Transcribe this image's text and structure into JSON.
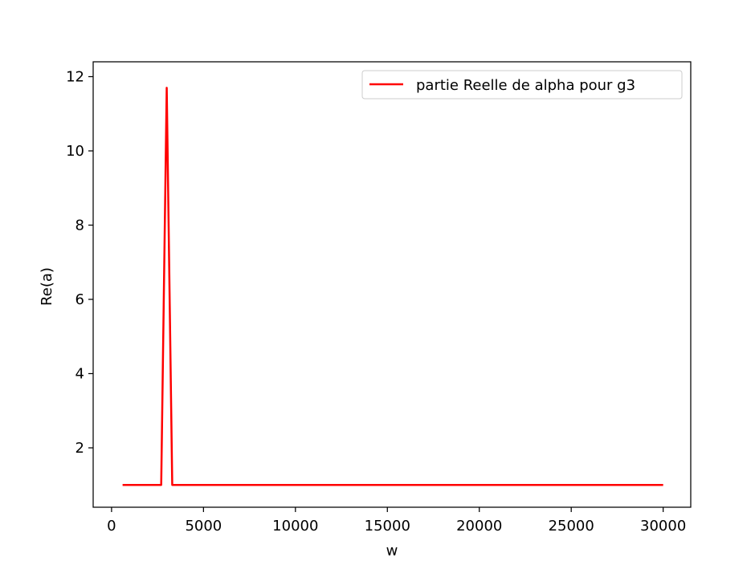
{
  "chart_data": {
    "type": "line",
    "title": "",
    "xlabel": "w",
    "ylabel": "Re(a)",
    "xlim": [
      -1000,
      31500
    ],
    "ylim": [
      0.4,
      12.4
    ],
    "grid": false,
    "legend_position": "top-right",
    "x_ticks": [
      0,
      5000,
      10000,
      15000,
      20000,
      25000,
      30000
    ],
    "x_tick_labels": [
      "0",
      "5000",
      "10000",
      "15000",
      "20000",
      "25000",
      "30000"
    ],
    "y_ticks": [
      2,
      4,
      6,
      8,
      10,
      12
    ],
    "y_tick_labels": [
      "2",
      "4",
      "6",
      "8",
      "10",
      "12"
    ],
    "series": [
      {
        "name": "partie Reelle de alpha pour g3",
        "color": "#ff0000",
        "x": [
          600,
          2700,
          3000,
          3300,
          30000
        ],
        "y": [
          1.0,
          1.0,
          11.7,
          1.0,
          1.0
        ]
      }
    ]
  }
}
